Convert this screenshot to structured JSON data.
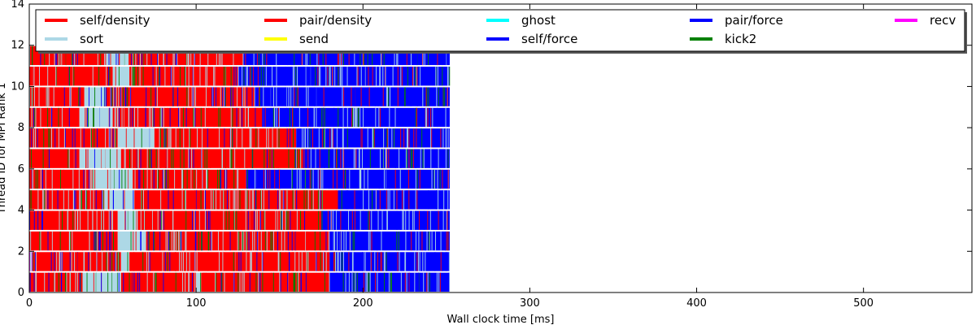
{
  "chart_data": {
    "type": "bar",
    "subtype": "horizontal-stacked-timeline",
    "title": "",
    "xlabel": "Wall clock time [ms]",
    "ylabel": "Thread ID for MPI Rank 1",
    "xlim": [
      0,
      565
    ],
    "ylim": [
      0,
      14
    ],
    "xticks": [
      0,
      100,
      200,
      300,
      400,
      500
    ],
    "yticks": [
      0,
      2,
      4,
      6,
      8,
      10,
      12,
      14
    ],
    "legend_position": "top",
    "legend": [
      {
        "name": "self/density",
        "color": "#ff0000"
      },
      {
        "name": "sort",
        "color": "#add8e6"
      },
      {
        "name": "pair/density",
        "color": "#ff0000"
      },
      {
        "name": "send",
        "color": "#ffff00"
      },
      {
        "name": "ghost",
        "color": "#00ffff"
      },
      {
        "name": "self/force",
        "color": "#0000ff"
      },
      {
        "name": "pair/force",
        "color": "#0000ff"
      },
      {
        "name": "kick2",
        "color": "#008000"
      },
      {
        "name": "recv",
        "color": "#ff00ff"
      }
    ],
    "threads": [
      {
        "thread": 0,
        "segments": [
          [
            0,
            32,
            "self/density"
          ],
          [
            32,
            55,
            "sort"
          ],
          [
            55,
            100,
            "pair/density"
          ],
          [
            100,
            103,
            "sort"
          ],
          [
            103,
            158,
            "pair/density"
          ],
          [
            158,
            160,
            "kick2"
          ],
          [
            160,
            180,
            "pair/density"
          ],
          [
            180,
            252,
            "pair/force"
          ]
        ]
      },
      {
        "thread": 1,
        "segments": [
          [
            0,
            2,
            "recv"
          ],
          [
            2,
            55,
            "self/density"
          ],
          [
            55,
            60,
            "sort"
          ],
          [
            60,
            180,
            "pair/density"
          ],
          [
            180,
            252,
            "pair/force"
          ]
        ]
      },
      {
        "thread": 2,
        "segments": [
          [
            0,
            53,
            "self/density"
          ],
          [
            53,
            70,
            "sort"
          ],
          [
            70,
            180,
            "pair/density"
          ],
          [
            180,
            252,
            "pair/force"
          ]
        ]
      },
      {
        "thread": 3,
        "segments": [
          [
            0,
            53,
            "self/density"
          ],
          [
            53,
            65,
            "sort"
          ],
          [
            65,
            175,
            "pair/density"
          ],
          [
            175,
            252,
            "pair/force"
          ]
        ]
      },
      {
        "thread": 4,
        "segments": [
          [
            0,
            45,
            "self/density"
          ],
          [
            45,
            63,
            "sort"
          ],
          [
            63,
            185,
            "pair/density"
          ],
          [
            185,
            252,
            "pair/force"
          ]
        ]
      },
      {
        "thread": 5,
        "segments": [
          [
            0,
            37,
            "self/density"
          ],
          [
            37,
            62,
            "sort"
          ],
          [
            62,
            130,
            "pair/density"
          ],
          [
            130,
            252,
            "pair/force"
          ]
        ]
      },
      {
        "thread": 6,
        "segments": [
          [
            0,
            30,
            "self/density"
          ],
          [
            30,
            55,
            "sort"
          ],
          [
            55,
            165,
            "pair/density"
          ],
          [
            165,
            252,
            "pair/force"
          ]
        ]
      },
      {
        "thread": 7,
        "segments": [
          [
            0,
            53,
            "self/density"
          ],
          [
            53,
            75,
            "sort"
          ],
          [
            75,
            160,
            "pair/density"
          ],
          [
            160,
            252,
            "pair/force"
          ]
        ]
      },
      {
        "thread": 8,
        "segments": [
          [
            0,
            30,
            "self/density"
          ],
          [
            30,
            50,
            "sort"
          ],
          [
            50,
            140,
            "pair/density"
          ],
          [
            140,
            252,
            "pair/force"
          ]
        ]
      },
      {
        "thread": 9,
        "segments": [
          [
            0,
            33,
            "self/density"
          ],
          [
            33,
            45,
            "sort"
          ],
          [
            45,
            135,
            "pair/density"
          ],
          [
            135,
            252,
            "pair/force"
          ]
        ]
      },
      {
        "thread": 10,
        "segments": [
          [
            0,
            50,
            "self/density"
          ],
          [
            50,
            60,
            "sort"
          ],
          [
            60,
            125,
            "pair/density"
          ],
          [
            125,
            252,
            "pair/force"
          ]
        ]
      },
      {
        "thread": 11,
        "segments": [
          [
            0,
            45,
            "self/density"
          ],
          [
            45,
            60,
            "sort"
          ],
          [
            60,
            128,
            "pair/density"
          ],
          [
            128,
            252,
            "pair/force"
          ]
        ]
      }
    ]
  }
}
